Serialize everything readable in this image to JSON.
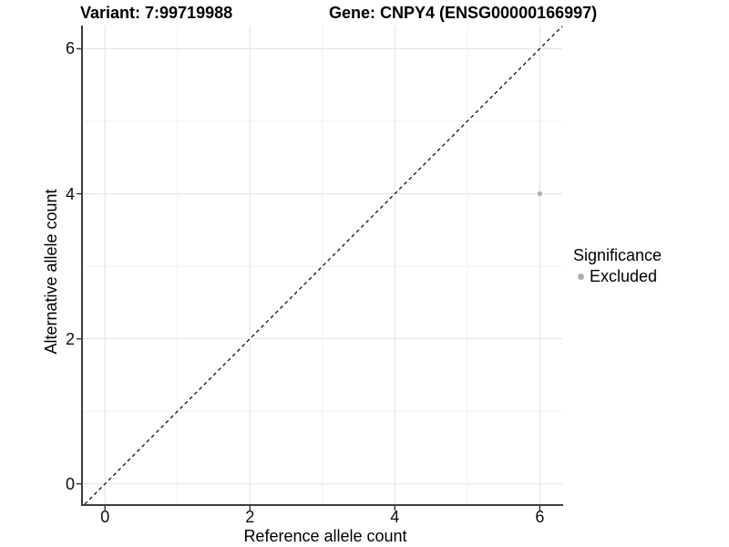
{
  "header": {
    "variant_title": "Variant: 7:99719988",
    "gene_title": "Gene: CNPY4 (ENSG00000166997)"
  },
  "chart_data": {
    "type": "scatter",
    "title": "Variant: 7:99719988",
    "subtitle": "Gene: CNPY4 (ENSG00000166997)",
    "xlabel": "Reference allele count",
    "ylabel": "Alternative allele count",
    "x_ticks": [
      0,
      2,
      4,
      6
    ],
    "x_tick_labels": [
      "0",
      "2",
      "4",
      "6"
    ],
    "y_ticks": [
      0,
      2,
      4,
      6
    ],
    "y_tick_labels": [
      "0",
      "2",
      "4",
      "6"
    ],
    "x_minor_ticks": [
      1,
      3,
      5
    ],
    "y_minor_ticks": [
      1,
      3,
      5
    ],
    "xlim": [
      -0.33,
      6.31
    ],
    "ylim": [
      -0.28,
      6.32
    ],
    "grid": "major-and-minor",
    "points": [
      {
        "x": 6,
        "y": 4,
        "series": "Excluded"
      }
    ],
    "identity_line": {
      "style": "dashed",
      "slope": 1,
      "intercept": 0
    },
    "legend": {
      "title": "Significance",
      "position": "right",
      "entries": [
        {
          "label": "Excluded",
          "color": "#b0b0b0"
        }
      ]
    },
    "colors": {
      "point": "#b0b0b0",
      "grid_major": "#e4e4e4",
      "grid_minor": "#f2f2f2",
      "axis_line": "#3d3d3d",
      "tick_mark": "#333333",
      "identity_line": "#000000",
      "text": "#000000"
    }
  }
}
